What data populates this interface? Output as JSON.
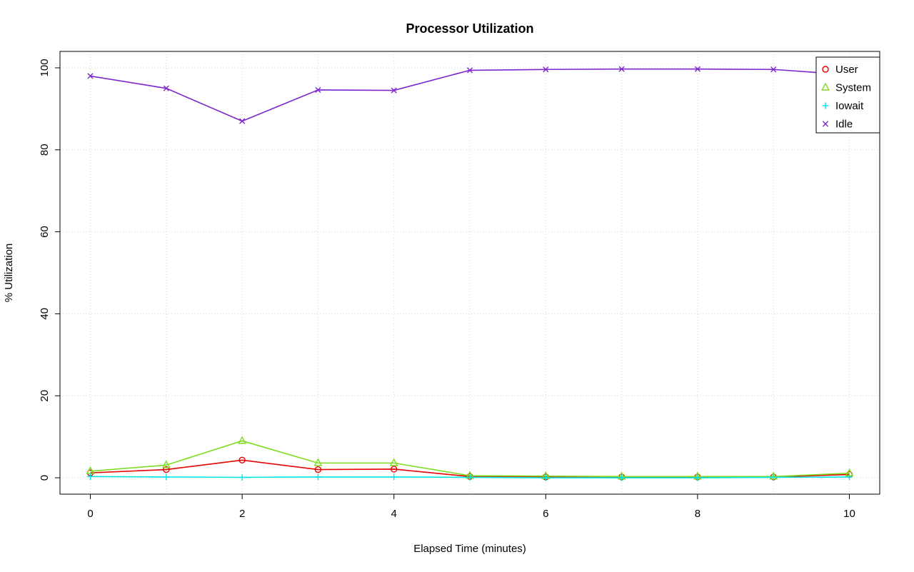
{
  "chart_data": {
    "type": "line",
    "title": "Processor Utilization",
    "xlabel": "Elapsed Time (minutes)",
    "ylabel": "% Utilization",
    "xlim": [
      0,
      10
    ],
    "ylim": [
      0,
      100
    ],
    "xticks": [
      0,
      2,
      4,
      6,
      8,
      10
    ],
    "yticks": [
      0,
      20,
      40,
      60,
      80,
      100
    ],
    "grid": "dotted",
    "grid_color": "#d6d6d6",
    "legend_position": "top-right",
    "x": [
      0,
      1,
      2,
      3,
      4,
      5,
      6,
      7,
      8,
      9,
      10
    ],
    "series": [
      {
        "name": "User",
        "marker": "circle",
        "color": "#e60000",
        "values": [
          1.2,
          2.0,
          4.3,
          2.0,
          2.1,
          0.3,
          0.2,
          0.2,
          0.2,
          0.2,
          0.8
        ]
      },
      {
        "name": "System",
        "marker": "triangle",
        "color": "#7ddc1f",
        "values": [
          1.6,
          3.1,
          9.0,
          3.6,
          3.6,
          0.5,
          0.4,
          0.3,
          0.3,
          0.3,
          1.1
        ]
      },
      {
        "name": "Iowait",
        "marker": "plus",
        "color": "#00e5e5",
        "values": [
          0.3,
          0.2,
          0.1,
          0.2,
          0.2,
          0.1,
          0.0,
          0.0,
          0.0,
          0.1,
          0.2
        ]
      },
      {
        "name": "Idle",
        "marker": "x",
        "color": "#7d26cd",
        "values": [
          98.0,
          95.0,
          87.0,
          94.6,
          94.5,
          99.4,
          99.6,
          99.7,
          99.7,
          99.6,
          98.3
        ]
      }
    ]
  }
}
